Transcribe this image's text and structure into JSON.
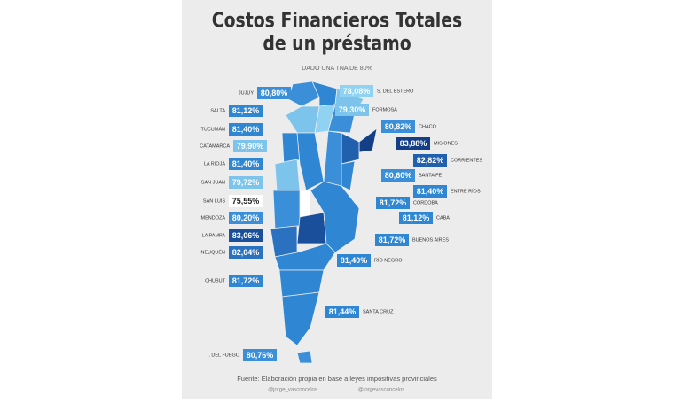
{
  "header": {
    "title_line1": "Costos Financieros Totales",
    "title_line2": "de un préstamo",
    "subtitle": "DADO UNA TNA DE 80%"
  },
  "provinces_left": [
    {
      "name": "JUJUY",
      "value": "80,80%",
      "color": "#3a8fd8"
    },
    {
      "name": "SALTA",
      "value": "81,12%",
      "color": "#2f86d2"
    },
    {
      "name": "TUCUMÁN",
      "value": "81,40%",
      "color": "#2f86d2"
    },
    {
      "name": "CATAMARCA",
      "value": "79,90%",
      "color": "#7cc4ec"
    },
    {
      "name": "LA RIOJA",
      "value": "81,40%",
      "color": "#2f86d2"
    },
    {
      "name": "SAN JUAN",
      "value": "79,72%",
      "color": "#7cc4ec"
    },
    {
      "name": "SAN LUIS",
      "value": "75,55%",
      "color": "#ffffff"
    },
    {
      "name": "MENDOZA",
      "value": "80,20%",
      "color": "#3a8fd8"
    },
    {
      "name": "LA PAMPA",
      "value": "83,06%",
      "color": "#1a4f9c"
    },
    {
      "name": "NEUQUÉN",
      "value": "82,04%",
      "color": "#2a72bf"
    },
    {
      "name": "CHUBUT",
      "value": "81,72%",
      "color": "#2f86d2"
    },
    {
      "name": "T. DEL FUEGO",
      "value": "80,76%",
      "color": "#3a8fd8"
    }
  ],
  "provinces_right": [
    {
      "name": "S. DEL ESTERO",
      "value": "78,08%",
      "color": "#8fd2f2"
    },
    {
      "name": "FORMOSA",
      "value": "79,30%",
      "color": "#7cc4ec"
    },
    {
      "name": "CHACO",
      "value": "80,82%",
      "color": "#3a8fd8"
    },
    {
      "name": "MISIONES",
      "value": "83,88%",
      "color": "#143f86"
    },
    {
      "name": "CORRIENTES",
      "value": "82,82%",
      "color": "#2160ad"
    },
    {
      "name": "SANTA FE",
      "value": "80,60%",
      "color": "#3a8fd8"
    },
    {
      "name": "ENTRE RÍOS",
      "value": "81,40%",
      "color": "#2f86d2"
    },
    {
      "name": "CÓRDOBA",
      "value": "81,72%",
      "color": "#2f86d2"
    },
    {
      "name": "CABA",
      "value": "81,12%",
      "color": "#2f86d2"
    },
    {
      "name": "BUENOS AIRES",
      "value": "81,72%",
      "color": "#2f86d2"
    },
    {
      "name": "RÍO NEGRO",
      "value": "81,40%",
      "color": "#2f86d2"
    },
    {
      "name": "SANTA CRUZ",
      "value": "81,44%",
      "color": "#2f86d2"
    }
  ],
  "footer": {
    "source": "Fuente: Elaboración propia en base a leyes impositivas provinciales",
    "handle1": "@jorge_vasconcelos",
    "handle2": "@jorgevasconcelos"
  }
}
